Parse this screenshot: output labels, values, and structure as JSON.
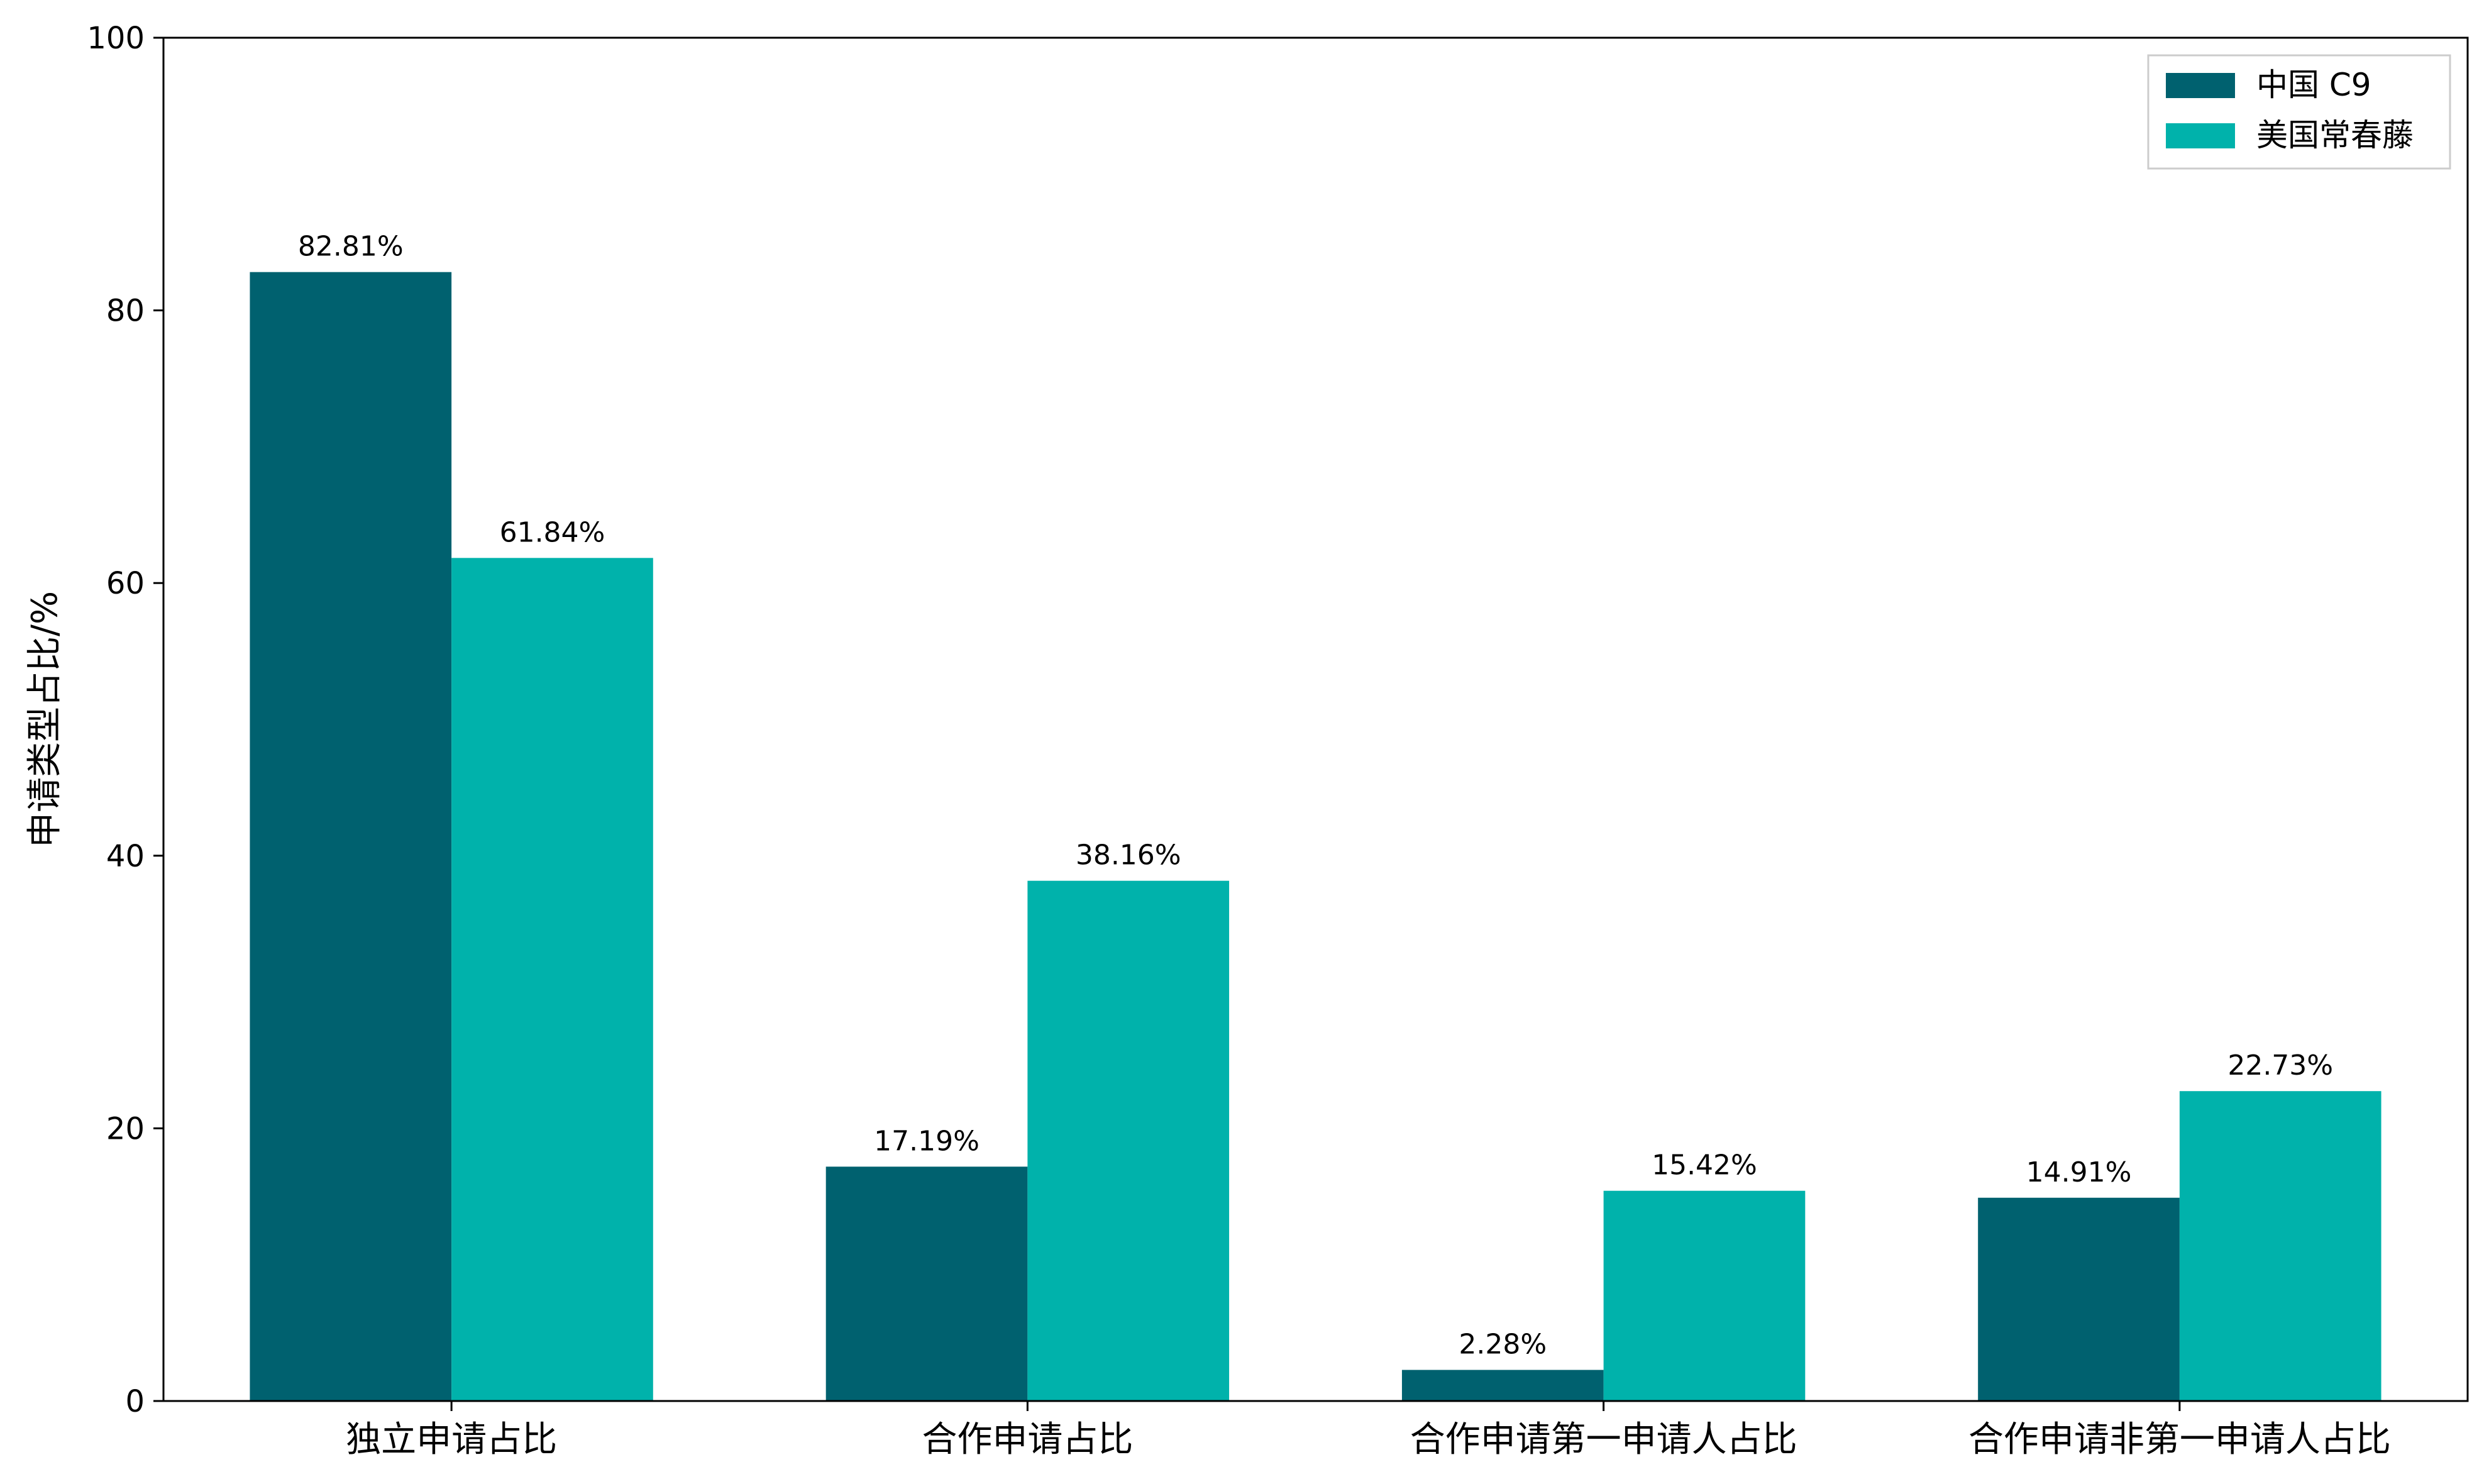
{
  "chart_data": {
    "type": "bar",
    "categories": [
      "独立申请占比",
      "合作申请占比",
      "合作申请第一申请人占比",
      "合作申请非第一申请人占比"
    ],
    "series": [
      {
        "name": "中国 C9",
        "color": "#00616f",
        "values": [
          82.81,
          17.19,
          2.28,
          14.91
        ],
        "labels": [
          "82.81%",
          "17.19%",
          "2.28%",
          "14.91%"
        ]
      },
      {
        "name": "美国常春藤",
        "color": "#00b2ab",
        "values": [
          61.84,
          38.16,
          15.42,
          22.73
        ],
        "labels": [
          "61.84%",
          "38.16%",
          "15.42%",
          "22.73%"
        ]
      }
    ],
    "ylabel": "申请类型占比/%",
    "ylim": [
      0,
      100
    ],
    "yticks": [
      0,
      20,
      40,
      60,
      80,
      100
    ],
    "grid": false,
    "legend_position": "top-right"
  }
}
